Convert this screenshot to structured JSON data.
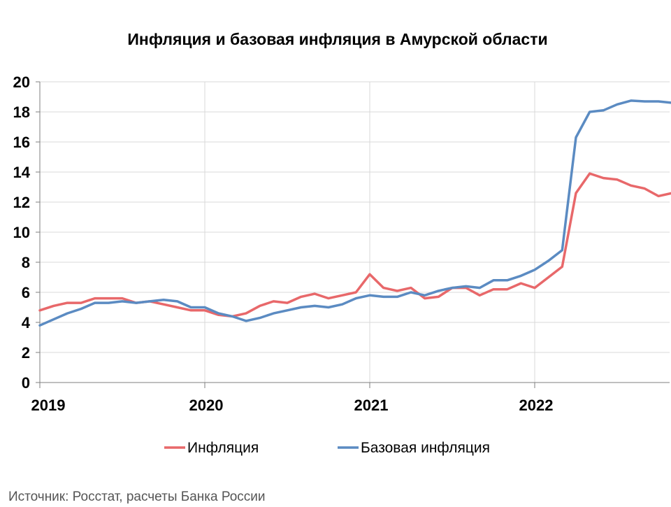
{
  "chart_data": {
    "type": "line",
    "title": "Инфляция и базовая инфляция в Амурской области",
    "xlabel": "",
    "ylabel": "",
    "ylim": [
      0,
      20
    ],
    "y_ticks": [
      0,
      2,
      4,
      6,
      8,
      10,
      12,
      14,
      16,
      18,
      20
    ],
    "x_ticks": [
      "2019",
      "2020",
      "2021",
      "2022"
    ],
    "x_start": "2019-01",
    "grid": true,
    "legend_position": "bottom",
    "series": [
      {
        "name": "Инфляция",
        "color": "#e8686a",
        "values": [
          4.8,
          5.1,
          5.3,
          5.3,
          5.6,
          5.6,
          5.6,
          5.3,
          5.4,
          5.2,
          5.0,
          4.8,
          4.8,
          4.5,
          4.4,
          4.6,
          5.1,
          5.4,
          5.3,
          5.7,
          5.9,
          5.6,
          5.8,
          6.0,
          7.2,
          6.3,
          6.1,
          6.3,
          5.6,
          5.7,
          6.3,
          6.3,
          5.8,
          6.2,
          6.2,
          6.6,
          6.3,
          7.0,
          7.7,
          12.6,
          13.9,
          13.6,
          13.5,
          13.1,
          12.9,
          12.4,
          12.6
        ]
      },
      {
        "name": "Базовая инфляция",
        "color": "#5b8bc2",
        "values": [
          3.8,
          4.2,
          4.6,
          4.9,
          5.3,
          5.3,
          5.4,
          5.3,
          5.4,
          5.5,
          5.4,
          5.0,
          5.0,
          4.6,
          4.4,
          4.1,
          4.3,
          4.6,
          4.8,
          5.0,
          5.1,
          5.0,
          5.2,
          5.6,
          5.8,
          5.7,
          5.7,
          6.0,
          5.8,
          6.1,
          6.3,
          6.4,
          6.3,
          6.8,
          6.8,
          7.1,
          7.5,
          8.1,
          8.8,
          16.3,
          18.0,
          18.1,
          18.5,
          18.75,
          18.7,
          18.7,
          18.6
        ]
      }
    ]
  },
  "source_text": "Источник: Росстат, расчеты Банка России"
}
